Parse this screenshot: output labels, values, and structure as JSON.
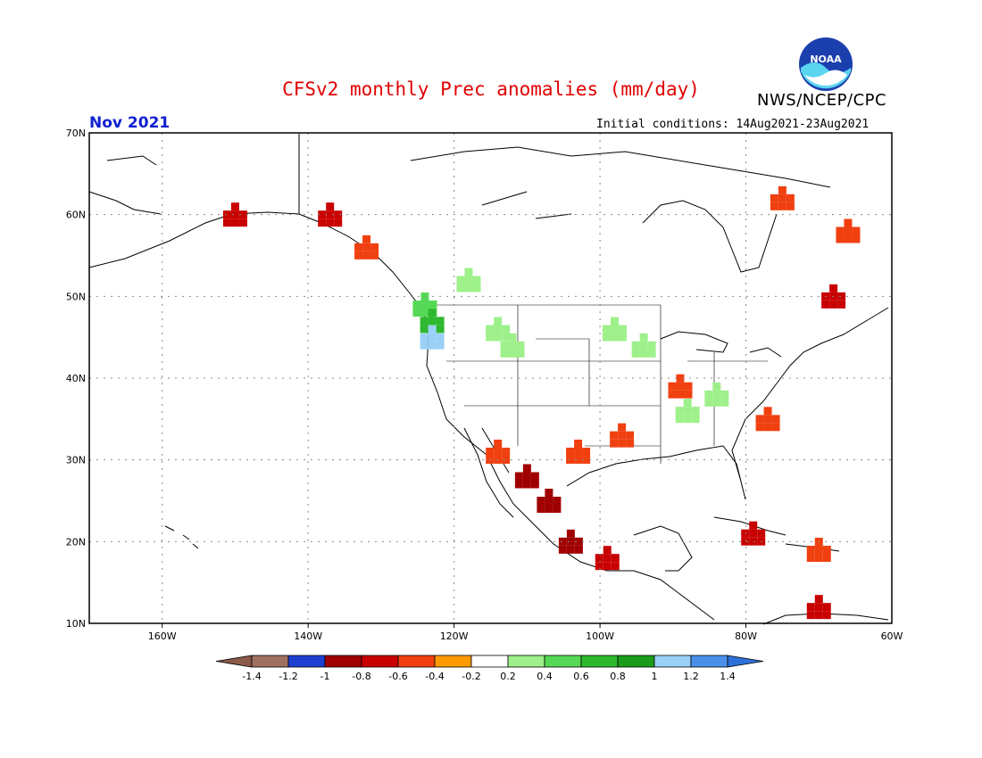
{
  "header": {
    "title": "CFSv2 monthly Prec anomalies (mm/day)",
    "agency": "NWS/NCEP/CPC",
    "month": "Nov 2021",
    "initial_conditions": "Initial conditions: 14Aug2021-23Aug2021",
    "logo_text": "NOAA"
  },
  "map": {
    "lon_range": [
      -170,
      -60
    ],
    "lat_range": [
      10,
      70
    ],
    "lat_ticks": [
      "70N",
      "60N",
      "50N",
      "40N",
      "30N",
      "20N",
      "10N"
    ],
    "lon_ticks": [
      "160W",
      "140W",
      "120W",
      "100W",
      "80W",
      "60W"
    ]
  },
  "colorbar": {
    "labels": [
      "-1.4",
      "-1.2",
      "-1",
      "-0.8",
      "-0.6",
      "-0.4",
      "-0.2",
      "0.2",
      "0.4",
      "0.6",
      "0.8",
      "1",
      "1.2",
      "1.4"
    ],
    "colors": [
      "#8b5a4a",
      "#a07060",
      "#1f3fd0",
      "#a00000",
      "#c80000",
      "#f04010",
      "#ff9a00",
      "#ffffff",
      "#9ef08a",
      "#55d855",
      "#2eb82e",
      "#1a9c1a",
      "#9ad0f5",
      "#4a90e8",
      "#2e70d8"
    ]
  },
  "chart_data": {
    "type": "heatmap",
    "units": "mm/day",
    "cells": [
      {
        "lat": 49,
        "lon": -124,
        "value": 0.6
      },
      {
        "lat": 47,
        "lon": -123,
        "value": 0.8
      },
      {
        "lat": 45,
        "lon": -123,
        "value": 1.2
      },
      {
        "lat": 52,
        "lon": -118,
        "value": 0.4
      },
      {
        "lat": 46,
        "lon": -114,
        "value": 0.4
      },
      {
        "lat": 44,
        "lon": -112,
        "value": 0.4
      },
      {
        "lat": 46,
        "lon": -98,
        "value": 0.4
      },
      {
        "lat": 44,
        "lon": -94,
        "value": 0.4
      },
      {
        "lat": 38,
        "lon": -84,
        "value": 0.4
      },
      {
        "lat": 36,
        "lon": -88,
        "value": 0.4
      },
      {
        "lat": 28,
        "lon": -110,
        "value": -0.8
      },
      {
        "lat": 25,
        "lon": -107,
        "value": -0.8
      },
      {
        "lat": 20,
        "lon": -104,
        "value": -0.8
      },
      {
        "lat": 18,
        "lon": -99,
        "value": -0.6
      },
      {
        "lat": 31,
        "lon": -114,
        "value": -0.4
      },
      {
        "lat": 31,
        "lon": -103,
        "value": -0.4
      },
      {
        "lat": 33,
        "lon": -97,
        "value": -0.4
      },
      {
        "lat": 39,
        "lon": -89,
        "value": -0.4
      },
      {
        "lat": 35,
        "lon": -77,
        "value": -0.4
      },
      {
        "lat": 21,
        "lon": -79,
        "value": -0.6
      },
      {
        "lat": 19,
        "lon": -70,
        "value": -0.4
      },
      {
        "lat": 12,
        "lon": -70,
        "value": -0.6
      },
      {
        "lat": 58,
        "lon": -66,
        "value": -0.4
      },
      {
        "lat": 62,
        "lon": -75,
        "value": -0.4
      },
      {
        "lat": 50,
        "lon": -68,
        "value": -0.6
      },
      {
        "lat": 60,
        "lon": -137,
        "value": -0.6
      },
      {
        "lat": 56,
        "lon": -132,
        "value": -0.4
      },
      {
        "lat": 60,
        "lon": -150,
        "value": -0.6
      }
    ]
  }
}
